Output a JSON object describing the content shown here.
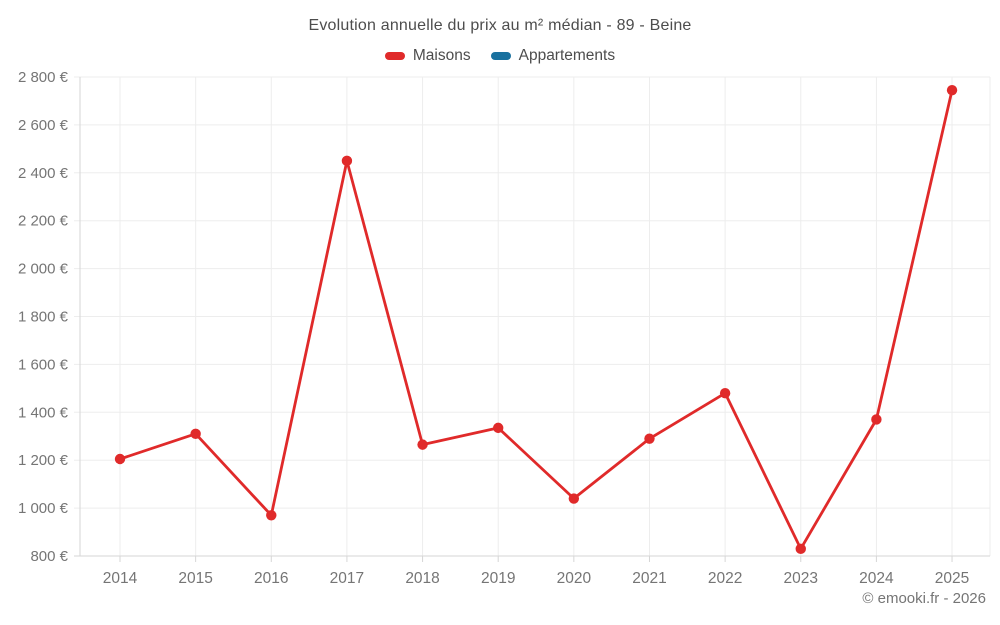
{
  "title": "Evolution annuelle du prix au m² médian - 89 - Beine",
  "legend": {
    "items": [
      {
        "label": "Maisons",
        "color": "#e02a2a"
      },
      {
        "label": "Appartements",
        "color": "#19719f"
      }
    ]
  },
  "footer": {
    "credit": "© emooki.fr - 2026"
  },
  "colors": {
    "maisons": "#e02a2a",
    "appartements": "#19719f",
    "grid": "#ededed",
    "axis": "#d6d6d6",
    "tick_text": "#757575",
    "title_text": "#4d4d4d"
  },
  "chart_data": {
    "type": "line",
    "title": "Evolution annuelle du prix au m² médian - 89 - Beine",
    "categories": [
      "2014",
      "2015",
      "2016",
      "2017",
      "2018",
      "2019",
      "2020",
      "2021",
      "2022",
      "2023",
      "2024",
      "2025"
    ],
    "series": [
      {
        "name": "Maisons",
        "color": "#e02a2a",
        "values": [
          1205,
          1310,
          970,
          2450,
          1265,
          1335,
          1040,
          1290,
          1480,
          830,
          1370,
          2745
        ]
      },
      {
        "name": "Appartements",
        "color": "#19719f",
        "values": []
      }
    ],
    "xlabel": "",
    "ylabel": "",
    "ylim": [
      800,
      2800
    ],
    "y_ticks": [
      800,
      1000,
      1200,
      1400,
      1600,
      1800,
      2000,
      2200,
      2400,
      2600,
      2800
    ],
    "y_tick_labels": [
      "800 €",
      "1 000 €",
      "1 200 €",
      "1 400 €",
      "1 600 €",
      "1 800 €",
      "2 000 €",
      "2 200 €",
      "2 400 €",
      "2 600 €",
      "2 800 €"
    ],
    "grid": true,
    "legend_position": "top",
    "unit": "€"
  }
}
